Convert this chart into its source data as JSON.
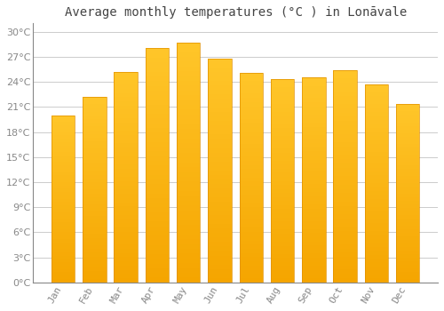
{
  "title": "Average monthly temperatures (°C ) in Lonāvale",
  "months": [
    "Jan",
    "Feb",
    "Mar",
    "Apr",
    "May",
    "Jun",
    "Jul",
    "Aug",
    "Sep",
    "Oct",
    "Nov",
    "Dec"
  ],
  "values": [
    20.0,
    22.2,
    25.2,
    28.0,
    28.7,
    26.8,
    25.1,
    24.3,
    24.5,
    25.4,
    23.7,
    21.3
  ],
  "bar_color_top": "#FFC62A",
  "bar_color_bottom": "#F5A500",
  "bar_edge_color": "#E09000",
  "background_color": "#ffffff",
  "grid_color": "#cccccc",
  "text_color": "#888888",
  "axis_color": "#888888",
  "ylim": [
    0,
    31
  ],
  "yticks": [
    0,
    3,
    6,
    9,
    12,
    15,
    18,
    21,
    24,
    27,
    30
  ],
  "title_fontsize": 10,
  "tick_fontsize": 8
}
